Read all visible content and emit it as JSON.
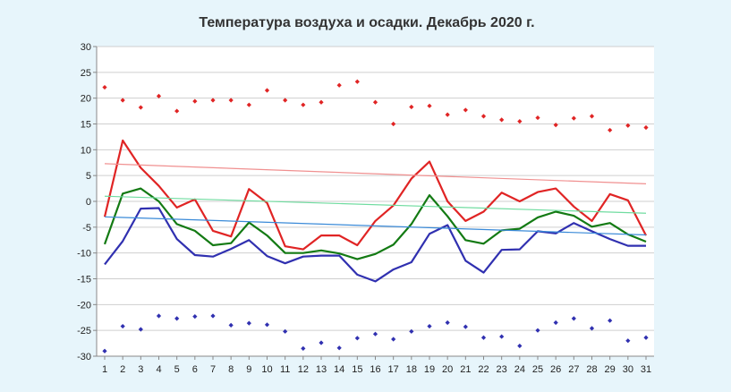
{
  "chart_data": {
    "type": "line",
    "title": "Температура воздуха и осадки. Декабрь 2020 г.",
    "xlabel": "",
    "ylabel": "",
    "x": [
      1,
      2,
      3,
      4,
      5,
      6,
      7,
      8,
      9,
      10,
      11,
      12,
      13,
      14,
      15,
      16,
      17,
      18,
      19,
      20,
      21,
      22,
      23,
      24,
      25,
      26,
      27,
      28,
      29,
      30,
      31
    ],
    "ylim": [
      -30,
      30
    ],
    "yticks": [
      30,
      25,
      20,
      15,
      10,
      5,
      0,
      -5,
      -10,
      -15,
      -20,
      -25,
      -30
    ],
    "grid": "horizontal",
    "series": [
      {
        "kind": "line",
        "color": "#e02424",
        "values": [
          -3.0,
          11.8,
          6.5,
          3.0,
          -1.2,
          0.4,
          -5.7,
          -6.8,
          2.4,
          -0.3,
          -8.7,
          -9.3,
          -6.6,
          -6.6,
          -8.5,
          -3.8,
          -0.8,
          4.4,
          7.7,
          0.0,
          -3.8,
          -2.0,
          1.7,
          0.0,
          1.8,
          2.5,
          -1.0,
          -3.8,
          1.4,
          0.2,
          -6.6
        ]
      },
      {
        "kind": "line",
        "color": "#137a13",
        "values": [
          -8.3,
          1.5,
          2.5,
          0.0,
          -4.4,
          -5.7,
          -8.5,
          -8.1,
          -4.1,
          -6.6,
          -10.0,
          -10.0,
          -9.5,
          -10.1,
          -11.2,
          -10.2,
          -8.4,
          -4.4,
          1.2,
          -2.9,
          -7.5,
          -8.2,
          -5.6,
          -5.3,
          -3.1,
          -2.0,
          -2.8,
          -4.9,
          -4.2,
          -6.4,
          -7.8
        ]
      },
      {
        "kind": "line",
        "color": "#3030b0",
        "values": [
          -12.2,
          -7.7,
          -1.4,
          -1.3,
          -7.3,
          -10.4,
          -10.7,
          -9.2,
          -7.5,
          -10.6,
          -12.0,
          -10.7,
          -10.5,
          -10.5,
          -14.2,
          -15.5,
          -13.2,
          -11.8,
          -6.3,
          -4.6,
          -11.5,
          -13.8,
          -9.4,
          -9.3,
          -5.8,
          -6.2,
          -4.2,
          -5.8,
          -7.3,
          -8.6,
          -8.6
        ]
      },
      {
        "kind": "trend",
        "color": "#f09090",
        "values_start_end": [
          7.3,
          3.4
        ]
      },
      {
        "kind": "trend",
        "color": "#70dca0",
        "values_start_end": [
          1.0,
          -2.3
        ]
      },
      {
        "kind": "trend",
        "color": "#3a8ad8",
        "values_start_end": [
          -3.0,
          -6.5
        ]
      },
      {
        "kind": "points",
        "color": "#e02424",
        "values": [
          22.1,
          19.6,
          18.2,
          20.4,
          17.5,
          19.4,
          19.6,
          19.6,
          18.7,
          21.5,
          19.6,
          18.7,
          19.2,
          22.5,
          23.2,
          19.2,
          15.0,
          18.3,
          18.5,
          16.8,
          17.7,
          16.5,
          15.8,
          15.5,
          16.2,
          14.8,
          16.1,
          16.5,
          13.8,
          14.7,
          14.3
        ]
      },
      {
        "kind": "points",
        "color": "#3030b0",
        "values": [
          -29.0,
          -24.2,
          -24.8,
          -22.2,
          -22.7,
          -22.3,
          -22.2,
          -24.0,
          -23.6,
          -23.9,
          -25.2,
          -28.5,
          -27.4,
          -28.4,
          -26.5,
          -25.7,
          -26.7,
          -25.2,
          -24.2,
          -23.5,
          -24.3,
          -26.4,
          -26.2,
          -28.0,
          -25.0,
          -23.5,
          -22.7,
          -24.6,
          -23.1,
          -27.0,
          -26.4
        ]
      }
    ]
  }
}
